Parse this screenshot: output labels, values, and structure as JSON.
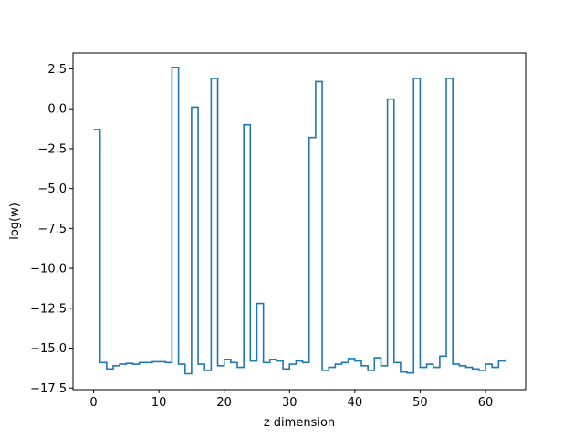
{
  "chart_data": {
    "type": "line",
    "drawstyle": "steps-post",
    "title": "",
    "xlabel": "z dimension",
    "ylabel": "log(w)",
    "xlim": [
      -3.15,
      66.15
    ],
    "ylim": [
      -17.6,
      3.5
    ],
    "xticks": [
      0,
      10,
      20,
      30,
      40,
      50,
      60
    ],
    "yticks": [
      2.5,
      0.0,
      -2.5,
      -5.0,
      -7.5,
      -10.0,
      -12.5,
      -15.0,
      -17.5
    ],
    "xtick_labels": [
      "0",
      "10",
      "20",
      "30",
      "40",
      "50",
      "60"
    ],
    "ytick_labels": [
      "2.5",
      "0.0",
      "−2.5",
      "−5.0",
      "−7.5",
      "−10.0",
      "−12.5",
      "−15.0",
      "−17.5"
    ],
    "grid": false,
    "line_color": "#1f77b4",
    "series": [
      {
        "x": [
          0,
          1,
          2,
          3,
          4,
          5,
          6,
          7,
          8,
          9,
          10,
          11,
          12,
          13,
          14,
          15,
          16,
          17,
          18,
          19,
          20,
          21,
          22,
          23,
          24,
          25,
          26,
          27,
          28,
          29,
          30,
          31,
          32,
          33,
          34,
          35,
          36,
          37,
          38,
          39,
          40,
          41,
          42,
          43,
          44,
          45,
          46,
          47,
          48,
          49,
          50,
          51,
          52,
          53,
          54,
          55,
          56,
          57,
          58,
          59,
          60,
          61,
          62,
          63
        ],
        "values": [
          -1.3,
          -15.9,
          -16.3,
          -16.1,
          -16.0,
          -15.95,
          -16.0,
          -15.9,
          -15.9,
          -15.85,
          -15.85,
          -15.9,
          2.6,
          -16.0,
          -16.6,
          0.1,
          -16.0,
          -16.4,
          1.9,
          -16.1,
          -15.7,
          -15.9,
          -16.2,
          -1.0,
          -15.8,
          -12.2,
          -15.9,
          -15.7,
          -15.8,
          -16.3,
          -16.0,
          -15.8,
          -15.9,
          -1.8,
          1.7,
          -16.4,
          -16.2,
          -16.0,
          -15.9,
          -15.65,
          -15.8,
          -16.1,
          -16.4,
          -15.6,
          -16.1,
          0.6,
          -15.9,
          -16.5,
          -16.55,
          1.9,
          -16.2,
          -16.0,
          -16.2,
          -15.5,
          1.9,
          -16.0,
          -16.1,
          -16.2,
          -16.3,
          -16.4,
          -16.0,
          -16.2,
          -15.8,
          -15.7
        ]
      }
    ]
  }
}
